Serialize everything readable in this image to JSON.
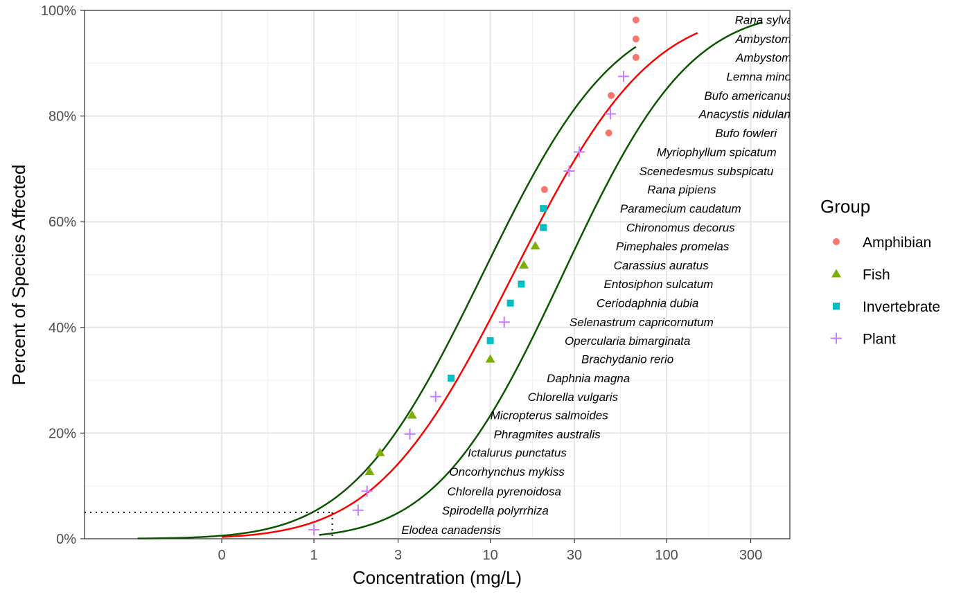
{
  "chart_data": {
    "type": "scatter",
    "title": "",
    "xlabel": "Concentration (mg/L)",
    "ylabel": "Percent of Species Affected",
    "x_scale": "log",
    "x_tick_labels": [
      "0",
      "1",
      "3",
      "10",
      "30",
      "100",
      "300"
    ],
    "x_tick_values": [
      0.3,
      1,
      3,
      10,
      30,
      100,
      300
    ],
    "xlim": [
      0.05,
      500
    ],
    "ylim": [
      0,
      1
    ],
    "y_tick_labels": [
      "0%",
      "20%",
      "40%",
      "60%",
      "80%",
      "100%"
    ],
    "y_tick_values": [
      0,
      0.2,
      0.4,
      0.6,
      0.8,
      1.0
    ],
    "grid": true,
    "legend": {
      "title": "Group",
      "placement": "right",
      "entries": [
        {
          "name": "Amphibian",
          "color": "#F8766D",
          "shape": "circle"
        },
        {
          "name": "Fish",
          "color": "#7CAE00",
          "shape": "triangle"
        },
        {
          "name": "Invertebrate",
          "color": "#00BFC4",
          "shape": "square"
        },
        {
          "name": "Plant",
          "color": "#C77CFF",
          "shape": "plus"
        }
      ]
    },
    "points": [
      {
        "species": "Elodea canadensis",
        "group": "Plant",
        "x": 1.0,
        "y": 0.017
      },
      {
        "species": "Spirodella polyrrhiza",
        "group": "Plant",
        "x": 1.78,
        "y": 0.054
      },
      {
        "species": "Chlorella pyrenoidosa",
        "group": "Plant",
        "x": 2.0,
        "y": 0.09
      },
      {
        "species": "Oncorhynchus mykiss",
        "group": "Fish",
        "x": 2.07,
        "y": 0.127
      },
      {
        "species": "Ictalurus punctatus",
        "group": "Fish",
        "x": 2.37,
        "y": 0.163
      },
      {
        "species": "Phragmites australis",
        "group": "Plant",
        "x": 3.5,
        "y": 0.198
      },
      {
        "species": "Micropterus salmoides",
        "group": "Fish",
        "x": 3.6,
        "y": 0.234
      },
      {
        "species": "Chlorella vulgaris",
        "group": "Plant",
        "x": 4.9,
        "y": 0.269
      },
      {
        "species": "Daphnia magna",
        "group": "Invertebrate",
        "x": 6.0,
        "y": 0.304
      },
      {
        "species": "Brachydanio rerio",
        "group": "Fish",
        "x": 10.0,
        "y": 0.34
      },
      {
        "species": "Opercularia bimarginata",
        "group": "Invertebrate",
        "x": 10.0,
        "y": 0.375
      },
      {
        "species": "Selenastrum capricornutum",
        "group": "Plant",
        "x": 12.0,
        "y": 0.41
      },
      {
        "species": "Ceriodaphnia dubia",
        "group": "Invertebrate",
        "x": 13.0,
        "y": 0.446
      },
      {
        "species": "Entosiphon sulcatum",
        "group": "Invertebrate",
        "x": 15.0,
        "y": 0.482
      },
      {
        "species": "Carassius auratus",
        "group": "Fish",
        "x": 15.5,
        "y": 0.518
      },
      {
        "species": "Pimephales promelas",
        "group": "Fish",
        "x": 18.0,
        "y": 0.554
      },
      {
        "species": "Chironomus decorus",
        "group": "Invertebrate",
        "x": 20.0,
        "y": 0.589
      },
      {
        "species": "Paramecium caudatum",
        "group": "Invertebrate",
        "x": 20.0,
        "y": 0.625
      },
      {
        "species": "Rana pipiens",
        "group": "Amphibian",
        "x": 20.3,
        "y": 0.661
      },
      {
        "species": "Scenedesmus subspicatus",
        "group": "Plant",
        "x": 28.0,
        "y": 0.696
      },
      {
        "species": "Myriophyllum spicatum",
        "group": "Plant",
        "x": 32.0,
        "y": 0.732
      },
      {
        "species": "Bufo fowleri",
        "group": "Amphibian",
        "x": 47.0,
        "y": 0.768
      },
      {
        "species": "Anacystis nidulans",
        "group": "Plant",
        "x": 48.0,
        "y": 0.804
      },
      {
        "species": "Bufo americanus",
        "group": "Amphibian",
        "x": 48.5,
        "y": 0.839
      },
      {
        "species": "Lemna minor",
        "group": "Plant",
        "x": 57.0,
        "y": 0.875
      },
      {
        "species": "Ambystoma jeffersonianum",
        "group": "Amphibian",
        "x": 67.0,
        "y": 0.911
      },
      {
        "species": "Ambystoma maculatum",
        "group": "Amphibian",
        "x": 67.0,
        "y": 0.946
      },
      {
        "species": "Rana sylvatica",
        "group": "Amphibian",
        "x": 67.0,
        "y": 0.982
      }
    ],
    "label_texts": [
      "Elodea canadensis",
      "Spirodella polyrrhiza",
      "Chlorella pyrenoidosa",
      "Oncorhynchus mykiss",
      "Ictalurus punctatus",
      "Phragmites australis",
      "Micropterus salmoides",
      "Chlorella vulgaris",
      "Daphnia magna",
      "Brachydanio rerio",
      "Opercularia bimarginata",
      "Selenastrum capricornutum",
      "Ceriodaphnia dubia",
      "Entosiphon sulcatum",
      "Carassius auratus",
      "Pimephales promelas",
      "Chironomus decorus",
      "Paramecium caudatum",
      "Rana pipiens",
      "Scenedesmus subspicatu",
      "Myriophyllum spicatum",
      "Bufo fowleri",
      "Anacystis nidulans",
      "Bufo americanus",
      "Lemna minor",
      "Ambystoma je",
      "Ambystoma m",
      "Rana sylvatica"
    ],
    "curves": [
      {
        "color": "#FF0000",
        "meanlog": 2.6,
        "sdlog": 1.4,
        "x_range": [
          0.3,
          150
        ]
      },
      {
        "color": "#0B5500",
        "meanlog": 2.2,
        "sdlog": 1.35,
        "x_range": [
          0.1,
          67
        ]
      },
      {
        "color": "#0B5500",
        "meanlog": 3.25,
        "sdlog": 1.3,
        "x_range": [
          1.07,
          350
        ]
      }
    ],
    "reference": {
      "y": 0.05,
      "x": 1.27
    }
  }
}
